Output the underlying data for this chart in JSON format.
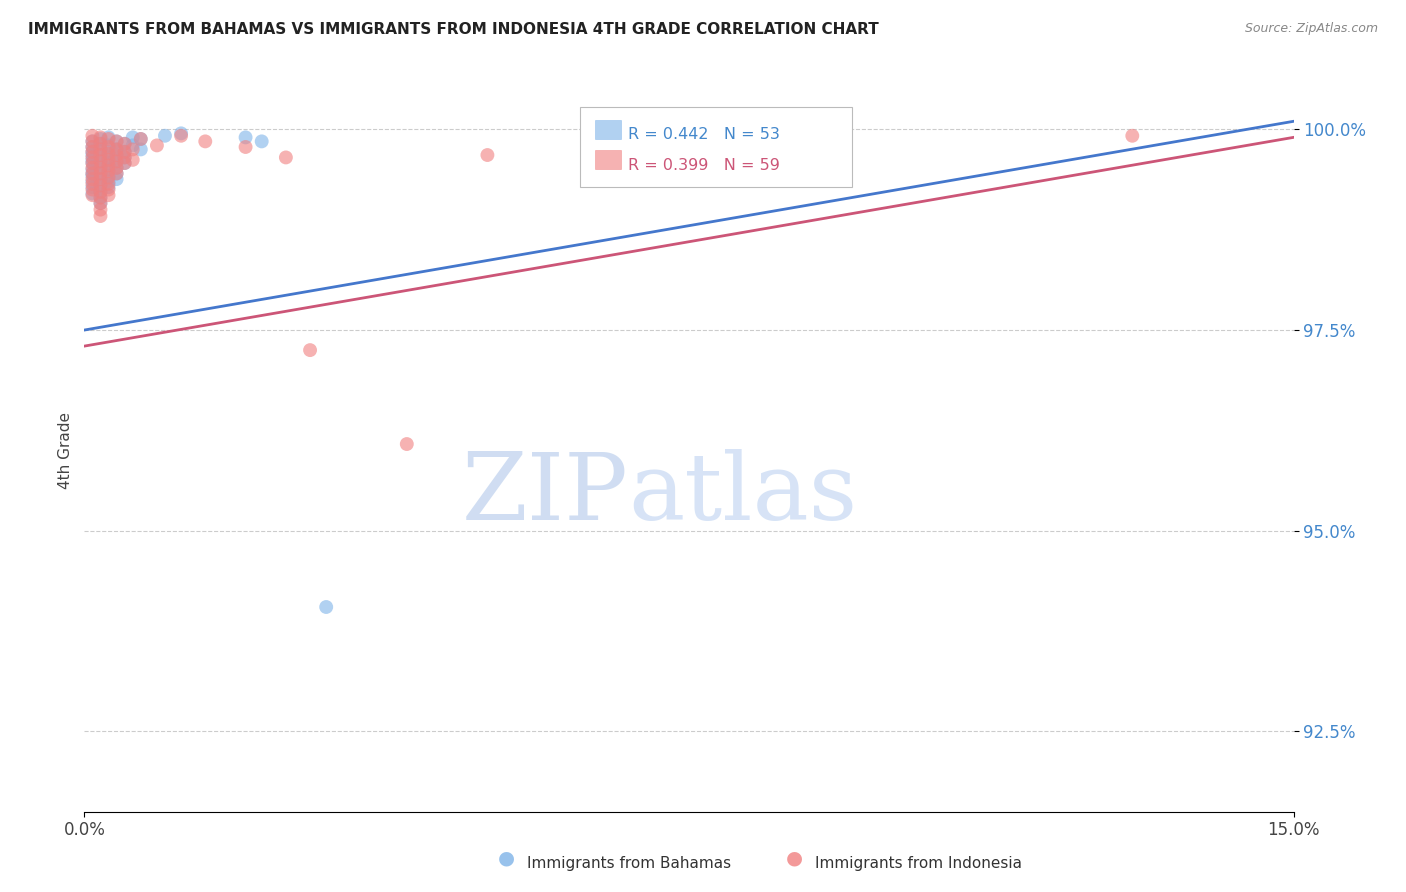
{
  "title": "IMMIGRANTS FROM BAHAMAS VS IMMIGRANTS FROM INDONESIA 4TH GRADE CORRELATION CHART",
  "source": "Source: ZipAtlas.com",
  "ylabel": "4th Grade",
  "xlim": [
    0.0,
    0.15
  ],
  "ylim": [
    0.915,
    1.005
  ],
  "ytick_labels": [
    "92.5%",
    "95.0%",
    "97.5%",
    "100.0%"
  ],
  "ytick_vals": [
    0.925,
    0.95,
    0.975,
    1.0
  ],
  "xtick_labels": [
    "0.0%",
    "15.0%"
  ],
  "xtick_vals": [
    0.0,
    0.15
  ],
  "legend1_label": "Immigrants from Bahamas",
  "legend2_label": "Immigrants from Indonesia",
  "R_blue": 0.442,
  "N_blue": 53,
  "R_pink": 0.399,
  "N_pink": 59,
  "blue_color": "#7EB3E8",
  "pink_color": "#F08080",
  "trend_blue": "#4477CC",
  "trend_pink": "#CC5577",
  "blue_scatter": [
    [
      0.001,
      0.9985
    ],
    [
      0.001,
      0.9978
    ],
    [
      0.001,
      0.9972
    ],
    [
      0.001,
      0.9968
    ],
    [
      0.001,
      0.9962
    ],
    [
      0.001,
      0.9958
    ],
    [
      0.001,
      0.995
    ],
    [
      0.001,
      0.9945
    ],
    [
      0.001,
      0.9942
    ],
    [
      0.001,
      0.9935
    ],
    [
      0.001,
      0.9928
    ],
    [
      0.001,
      0.992
    ],
    [
      0.002,
      0.9988
    ],
    [
      0.002,
      0.9982
    ],
    [
      0.002,
      0.9975
    ],
    [
      0.002,
      0.9968
    ],
    [
      0.002,
      0.996
    ],
    [
      0.002,
      0.9952
    ],
    [
      0.002,
      0.9945
    ],
    [
      0.002,
      0.9938
    ],
    [
      0.002,
      0.993
    ],
    [
      0.002,
      0.9922
    ],
    [
      0.002,
      0.9915
    ],
    [
      0.002,
      0.9908
    ],
    [
      0.003,
      0.999
    ],
    [
      0.003,
      0.998
    ],
    [
      0.003,
      0.9972
    ],
    [
      0.003,
      0.9965
    ],
    [
      0.003,
      0.9958
    ],
    [
      0.003,
      0.995
    ],
    [
      0.003,
      0.9942
    ],
    [
      0.003,
      0.9935
    ],
    [
      0.003,
      0.9928
    ],
    [
      0.004,
      0.9985
    ],
    [
      0.004,
      0.9975
    ],
    [
      0.004,
      0.9968
    ],
    [
      0.004,
      0.996
    ],
    [
      0.004,
      0.9952
    ],
    [
      0.004,
      0.9945
    ],
    [
      0.004,
      0.9938
    ],
    [
      0.005,
      0.9982
    ],
    [
      0.005,
      0.9972
    ],
    [
      0.005,
      0.9965
    ],
    [
      0.005,
      0.9958
    ],
    [
      0.006,
      0.999
    ],
    [
      0.006,
      0.998
    ],
    [
      0.007,
      0.9988
    ],
    [
      0.007,
      0.9975
    ],
    [
      0.01,
      0.9992
    ],
    [
      0.012,
      0.9995
    ],
    [
      0.02,
      0.999
    ],
    [
      0.022,
      0.9985
    ],
    [
      0.03,
      0.9405
    ]
  ],
  "pink_scatter": [
    [
      0.001,
      0.9992
    ],
    [
      0.001,
      0.9985
    ],
    [
      0.001,
      0.9978
    ],
    [
      0.001,
      0.9972
    ],
    [
      0.001,
      0.9965
    ],
    [
      0.001,
      0.9958
    ],
    [
      0.001,
      0.9952
    ],
    [
      0.001,
      0.9945
    ],
    [
      0.001,
      0.9938
    ],
    [
      0.001,
      0.9932
    ],
    [
      0.001,
      0.9925
    ],
    [
      0.001,
      0.9918
    ],
    [
      0.002,
      0.999
    ],
    [
      0.002,
      0.9982
    ],
    [
      0.002,
      0.9975
    ],
    [
      0.002,
      0.9968
    ],
    [
      0.002,
      0.996
    ],
    [
      0.002,
      0.9952
    ],
    [
      0.002,
      0.9945
    ],
    [
      0.002,
      0.9938
    ],
    [
      0.002,
      0.993
    ],
    [
      0.002,
      0.9922
    ],
    [
      0.002,
      0.9915
    ],
    [
      0.002,
      0.9908
    ],
    [
      0.002,
      0.99
    ],
    [
      0.002,
      0.9892
    ],
    [
      0.003,
      0.9988
    ],
    [
      0.003,
      0.9978
    ],
    [
      0.003,
      0.997
    ],
    [
      0.003,
      0.9962
    ],
    [
      0.003,
      0.9955
    ],
    [
      0.003,
      0.9948
    ],
    [
      0.003,
      0.994
    ],
    [
      0.003,
      0.9932
    ],
    [
      0.003,
      0.9925
    ],
    [
      0.003,
      0.9918
    ],
    [
      0.004,
      0.9985
    ],
    [
      0.004,
      0.9975
    ],
    [
      0.004,
      0.9968
    ],
    [
      0.004,
      0.996
    ],
    [
      0.004,
      0.9952
    ],
    [
      0.004,
      0.9945
    ],
    [
      0.005,
      0.9982
    ],
    [
      0.005,
      0.9972
    ],
    [
      0.005,
      0.9965
    ],
    [
      0.005,
      0.9958
    ],
    [
      0.006,
      0.9975
    ],
    [
      0.006,
      0.9962
    ],
    [
      0.007,
      0.9988
    ],
    [
      0.009,
      0.998
    ],
    [
      0.012,
      0.9992
    ],
    [
      0.015,
      0.9985
    ],
    [
      0.02,
      0.9978
    ],
    [
      0.025,
      0.9965
    ],
    [
      0.028,
      0.9725
    ],
    [
      0.04,
      0.9608
    ],
    [
      0.05,
      0.9968
    ],
    [
      0.065,
      0.9992
    ],
    [
      0.13,
      0.9992
    ]
  ],
  "watermark_zip": "ZIP",
  "watermark_atlas": "atlas",
  "background_color": "#ffffff",
  "grid_color": "#cccccc"
}
